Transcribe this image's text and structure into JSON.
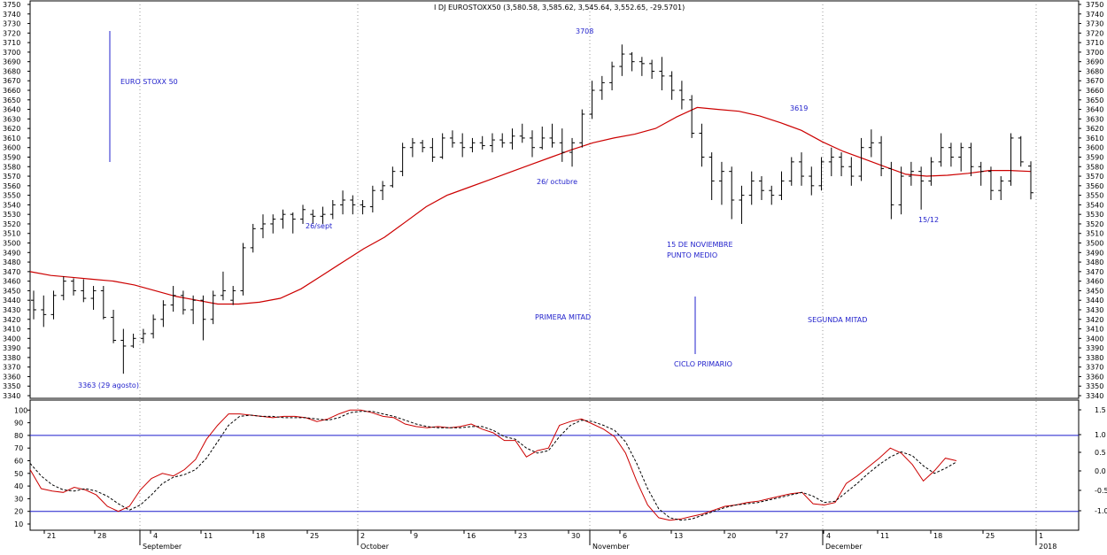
{
  "chart_data": [
    {
      "type": "bar",
      "subtype": "ohlc",
      "title": "I DJ EUROSTOXX50 (3,580.58, 3,585.62, 3,545.64, 3,552.65, -29.5701)",
      "ylim": [
        3340,
        3750
      ],
      "y_ticks": [
        3340,
        3350,
        3360,
        3370,
        3380,
        3390,
        3400,
        3410,
        3420,
        3430,
        3440,
        3450,
        3460,
        3470,
        3480,
        3490,
        3500,
        3510,
        3520,
        3530,
        3540,
        3550,
        3560,
        3570,
        3580,
        3590,
        3600,
        3610,
        3620,
        3630,
        3640,
        3650,
        3660,
        3670,
        3680,
        3690,
        3700,
        3710,
        3720,
        3730,
        3740,
        3750
      ],
      "x_ticks": [
        "21",
        "28",
        "4",
        "11",
        "18",
        "25",
        "2",
        "9",
        "16",
        "23",
        "30",
        "6",
        "13",
        "20",
        "27",
        "4",
        "11",
        "18",
        "25",
        "1"
      ],
      "month_labels": [
        "September",
        "October",
        "November",
        "December",
        "2018"
      ],
      "grid": true,
      "ohlc_columns": [
        "open",
        "high",
        "low",
        "close"
      ],
      "bars": [
        [
          3440,
          3450,
          3420,
          3430
        ],
        [
          3430,
          3445,
          3412,
          3425
        ],
        [
          3425,
          3450,
          3420,
          3445
        ],
        [
          3445,
          3465,
          3440,
          3460
        ],
        [
          3460,
          3463,
          3445,
          3450
        ],
        [
          3450,
          3462,
          3438,
          3442
        ],
        [
          3442,
          3455,
          3430,
          3450
        ],
        [
          3450,
          3455,
          3420,
          3422
        ],
        [
          3422,
          3430,
          3395,
          3398
        ],
        [
          3398,
          3410,
          3363,
          3392
        ],
        [
          3392,
          3405,
          3390,
          3400
        ],
        [
          3400,
          3410,
          3395,
          3405
        ],
        [
          3405,
          3425,
          3400,
          3420
        ],
        [
          3420,
          3440,
          3412,
          3435
        ],
        [
          3435,
          3455,
          3428,
          3445
        ],
        [
          3445,
          3450,
          3425,
          3430
        ],
        [
          3430,
          3445,
          3415,
          3440
        ],
        [
          3440,
          3445,
          3398,
          3420
        ],
        [
          3420,
          3450,
          3415,
          3445
        ],
        [
          3445,
          3470,
          3440,
          3450
        ],
        [
          3440,
          3455,
          3435,
          3450
        ],
        [
          3450,
          3500,
          3445,
          3495
        ],
        [
          3495,
          3520,
          3490,
          3515
        ],
        [
          3515,
          3530,
          3505,
          3520
        ],
        [
          3520,
          3530,
          3510,
          3525
        ],
        [
          3525,
          3535,
          3515,
          3530
        ],
        [
          3530,
          3532,
          3510,
          3525
        ],
        [
          3525,
          3540,
          3520,
          3535
        ],
        [
          3530,
          3535,
          3520,
          3528
        ],
        [
          3528,
          3538,
          3520,
          3530
        ],
        [
          3530,
          3545,
          3525,
          3540
        ],
        [
          3540,
          3555,
          3530,
          3545
        ],
        [
          3545,
          3550,
          3530,
          3540
        ],
        [
          3540,
          3545,
          3530,
          3538
        ],
        [
          3538,
          3560,
          3532,
          3555
        ],
        [
          3555,
          3565,
          3545,
          3560
        ],
        [
          3560,
          3580,
          3558,
          3575
        ],
        [
          3575,
          3605,
          3570,
          3600
        ],
        [
          3600,
          3610,
          3590,
          3605
        ],
        [
          3605,
          3608,
          3595,
          3600
        ],
        [
          3600,
          3610,
          3585,
          3590
        ],
        [
          3590,
          3615,
          3588,
          3610
        ],
        [
          3610,
          3618,
          3600,
          3605
        ],
        [
          3605,
          3615,
          3590,
          3600
        ],
        [
          3600,
          3610,
          3595,
          3605
        ],
        [
          3605,
          3612,
          3598,
          3602
        ],
        [
          3602,
          3615,
          3595,
          3608
        ],
        [
          3608,
          3615,
          3600,
          3605
        ],
        [
          3605,
          3620,
          3598,
          3612
        ],
        [
          3612,
          3625,
          3605,
          3610
        ],
        [
          3610,
          3618,
          3590,
          3600
        ],
        [
          3600,
          3622,
          3598,
          3610
        ],
        [
          3610,
          3625,
          3600,
          3605
        ],
        [
          3605,
          3620,
          3585,
          3595
        ],
        [
          3595,
          3610,
          3580,
          3605
        ],
        [
          3605,
          3640,
          3600,
          3635
        ],
        [
          3635,
          3670,
          3630,
          3660
        ],
        [
          3660,
          3675,
          3650,
          3668
        ],
        [
          3668,
          3690,
          3660,
          3685
        ],
        [
          3685,
          3708,
          3675,
          3698
        ],
        [
          3698,
          3700,
          3680,
          3690
        ],
        [
          3690,
          3695,
          3675,
          3688
        ],
        [
          3688,
          3692,
          3672,
          3680
        ],
        [
          3680,
          3695,
          3660,
          3675
        ],
        [
          3675,
          3680,
          3650,
          3660
        ],
        [
          3660,
          3670,
          3640,
          3650
        ],
        [
          3650,
          3655,
          3610,
          3615
        ],
        [
          3615,
          3625,
          3580,
          3590
        ],
        [
          3590,
          3595,
          3545,
          3565
        ],
        [
          3565,
          3585,
          3540,
          3575
        ],
        [
          3575,
          3580,
          3525,
          3545
        ],
        [
          3545,
          3560,
          3520,
          3550
        ],
        [
          3550,
          3575,
          3540,
          3565
        ],
        [
          3565,
          3570,
          3545,
          3555
        ],
        [
          3555,
          3560,
          3540,
          3550
        ],
        [
          3550,
          3575,
          3545,
          3565
        ],
        [
          3565,
          3590,
          3560,
          3585
        ],
        [
          3585,
          3595,
          3560,
          3570
        ],
        [
          3570,
          3580,
          3550,
          3560
        ],
        [
          3560,
          3590,
          3555,
          3585
        ],
        [
          3585,
          3600,
          3570,
          3590
        ],
        [
          3590,
          3595,
          3570,
          3580
        ],
        [
          3580,
          3590,
          3560,
          3570
        ],
        [
          3570,
          3610,
          3565,
          3600
        ],
        [
          3600,
          3619,
          3590,
          3605
        ],
        [
          3605,
          3612,
          3570,
          3578
        ],
        [
          3578,
          3585,
          3525,
          3540
        ],
        [
          3540,
          3580,
          3530,
          3570
        ],
        [
          3570,
          3585,
          3560,
          3575
        ],
        [
          3575,
          3580,
          3535,
          3565
        ],
        [
          3565,
          3590,
          3560,
          3585
        ],
        [
          3585,
          3615,
          3580,
          3600
        ],
        [
          3600,
          3605,
          3580,
          3590
        ],
        [
          3590,
          3605,
          3575,
          3600
        ],
        [
          3600,
          3605,
          3570,
          3580
        ],
        [
          3580,
          3585,
          3560,
          3575
        ],
        [
          3575,
          3580,
          3545,
          3555
        ],
        [
          3555,
          3570,
          3545,
          3565
        ],
        [
          3565,
          3615,
          3560,
          3610
        ],
        [
          3610,
          3612,
          3580,
          3585
        ],
        [
          3580.58,
          3585.62,
          3545.64,
          3552.65
        ]
      ],
      "moving_average": [
        3470,
        3466,
        3464,
        3462,
        3460,
        3456,
        3450,
        3444,
        3440,
        3436,
        3436,
        3438,
        3442,
        3452,
        3466,
        3480,
        3494,
        3506,
        3522,
        3538,
        3550,
        3558,
        3566,
        3574,
        3582,
        3590,
        3598,
        3605,
        3610,
        3614,
        3620,
        3632,
        3642,
        3640,
        3638,
        3633,
        3626,
        3618,
        3606,
        3596,
        3588,
        3580,
        3572,
        3570,
        3571,
        3573,
        3576,
        3576,
        3575
      ],
      "annotations": [
        "EURO STOXX 50",
        "3363 (29 agosto)",
        "26/sept",
        "3708",
        "26/ octubre",
        "PRIMERA MITAD",
        "15 DE NOVIEMBRE",
        "PUNTO MEDIO",
        "CICLO PRIMARIO",
        "3619",
        "SEGUNDA MITAD",
        "15/12"
      ]
    },
    {
      "type": "line",
      "ylim_left": [
        10,
        100
      ],
      "y_ticks_left": [
        10,
        20,
        30,
        40,
        50,
        60,
        70,
        80,
        90,
        100
      ],
      "y_ticks_right": [
        "1.5",
        "1.0",
        "0.5",
        "0.0",
        "-0.5",
        "-1.0"
      ],
      "reference_lines": [
        80,
        20
      ],
      "series": [
        {
          "style": "solid",
          "color": "#cc0000",
          "values": [
            53,
            38,
            36,
            35,
            39,
            37,
            33,
            24,
            20,
            24,
            37,
            46,
            50,
            48,
            53,
            61,
            77,
            88,
            97,
            97,
            96,
            95,
            94,
            95,
            95,
            94,
            91,
            93,
            97,
            100,
            100,
            98,
            95,
            94,
            89,
            87,
            86,
            87,
            86,
            87,
            89,
            85,
            82,
            76,
            76,
            63,
            68,
            70,
            88,
            91,
            93,
            89,
            85,
            79,
            66,
            44,
            25,
            15,
            13,
            14,
            16,
            18,
            21,
            24,
            25,
            27,
            28,
            30,
            32,
            34,
            35,
            26,
            25,
            27,
            42,
            48,
            55,
            62,
            70,
            66,
            57,
            44,
            52,
            62,
            60
          ]
        },
        {
          "style": "dashed",
          "color": "#000000",
          "values": [
            58,
            48,
            41,
            37,
            36,
            38,
            36,
            32,
            26,
            21,
            25,
            33,
            42,
            47,
            49,
            53,
            62,
            75,
            88,
            95,
            96,
            95,
            95,
            94,
            94,
            94,
            93,
            92,
            94,
            98,
            99,
            99,
            97,
            95,
            92,
            89,
            87,
            86,
            86,
            86,
            87,
            87,
            84,
            79,
            77,
            70,
            66,
            68,
            79,
            88,
            92,
            91,
            88,
            84,
            75,
            58,
            38,
            22,
            15,
            13,
            14,
            17,
            20,
            23,
            25,
            26,
            27,
            29,
            31,
            33,
            35,
            32,
            27,
            28,
            35,
            42,
            50,
            57,
            63,
            67,
            64,
            56,
            50,
            54,
            59
          ]
        }
      ]
    }
  ]
}
